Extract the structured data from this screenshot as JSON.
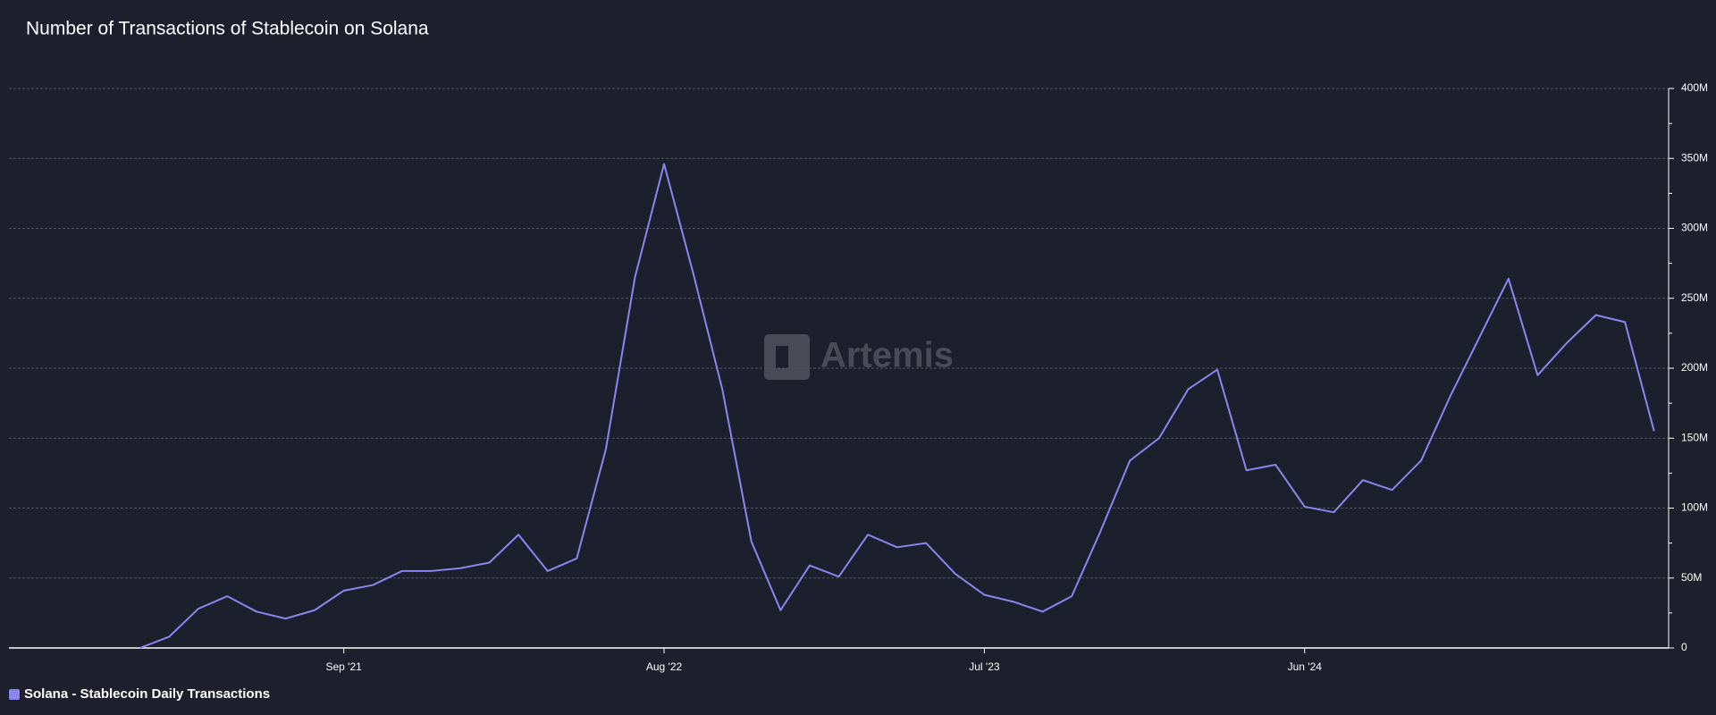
{
  "chart_data": {
    "type": "line",
    "title": "Number of Transactions of Stablecoin on Solana",
    "watermark": "Artemis",
    "categories": [
      null,
      null,
      null,
      null,
      null,
      null,
      null,
      "Sep '21",
      null,
      null,
      null,
      null,
      null,
      null,
      null,
      null,
      null,
      null,
      "Aug '22",
      null,
      null,
      null,
      null,
      null,
      null,
      null,
      null,
      null,
      null,
      "Jul '23",
      null,
      null,
      null,
      null,
      null,
      null,
      null,
      null,
      null,
      null,
      "Jun '24",
      null,
      null,
      null,
      null,
      null,
      null,
      null,
      null,
      null,
      null,
      null,
      null
    ],
    "series": [
      {
        "name": "Solana - Stablecoin Daily Transactions",
        "color": "#8b85f0",
        "values": [
          0,
          8000000,
          28000000,
          37000000,
          26000000,
          21000000,
          27000000,
          41000000,
          45000000,
          55000000,
          55000000,
          57000000,
          61000000,
          81000000,
          55000000,
          64000000,
          142000000,
          265000000,
          346000000,
          268000000,
          185000000,
          76000000,
          27000000,
          59000000,
          51000000,
          81000000,
          72000000,
          75000000,
          53000000,
          38000000,
          33000000,
          26000000,
          37000000,
          84000000,
          134000000,
          150000000,
          185000000,
          199000000,
          127000000,
          131000000,
          101000000,
          97000000,
          120000000,
          113000000,
          134000000,
          180000000,
          222000000,
          264000000,
          195000000,
          218000000,
          238000000,
          233000000,
          155000000
        ]
      }
    ],
    "ylim": [
      0,
      400000000
    ],
    "yticks": [
      0,
      {
        "value": 50000000,
        "label": "50M"
      },
      {
        "value": 100000000,
        "label": "100M"
      },
      {
        "value": 150000000,
        "label": "150M"
      },
      {
        "value": 200000000,
        "label": "200M"
      },
      {
        "value": 250000000,
        "label": "250M"
      },
      {
        "value": 300000000,
        "label": "300M"
      },
      {
        "value": 350000000,
        "label": "350M"
      },
      {
        "value": 400000000,
        "label": "400M"
      }
    ],
    "y_minor_ticks": [
      25000000,
      75000000,
      125000000,
      175000000,
      225000000,
      275000000,
      325000000,
      375000000
    ],
    "grid": true
  }
}
